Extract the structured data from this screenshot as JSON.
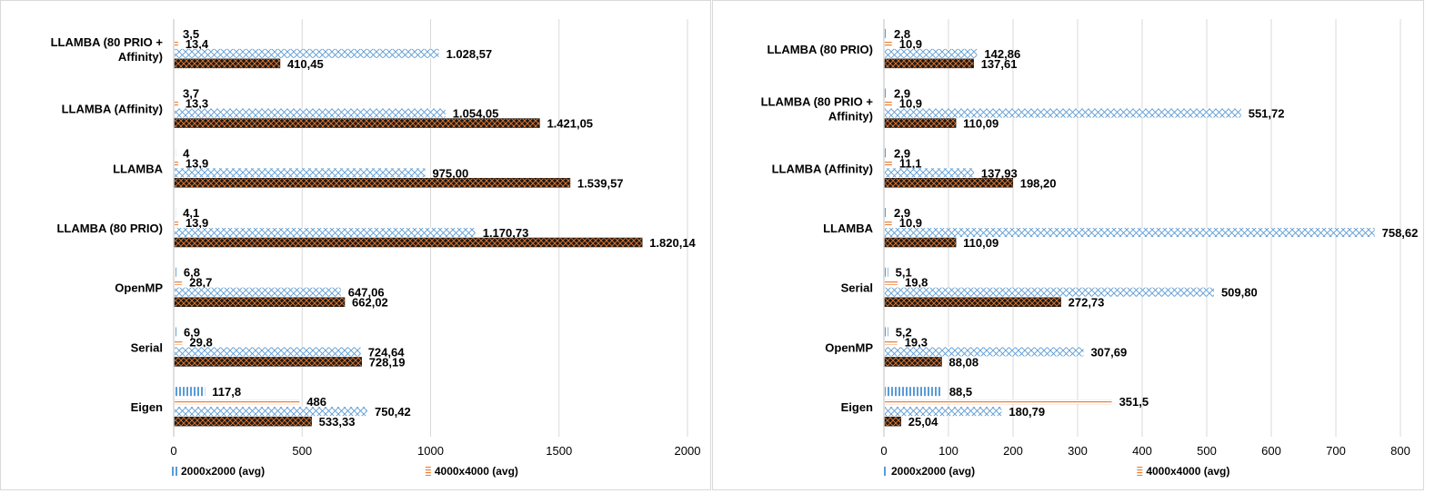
{
  "chart_data": [
    {
      "type": "bar",
      "orientation": "horizontal",
      "categories": [
        "LLAMBA (80 PRIO + Affinity)",
        "LLAMBA (Affinity)",
        "LLAMBA",
        "LLAMBA (80 PRIO)",
        "OpenMP",
        "Serial",
        "Eigen"
      ],
      "series": [
        {
          "name": "2000x2000 (avg)",
          "values": [
            3.5,
            3.7,
            4,
            4.1,
            6.8,
            6.9,
            117.8
          ],
          "labels": [
            "3,5",
            "3,7",
            "4",
            "4,1",
            "6,8",
            "6,9",
            "117,8"
          ]
        },
        {
          "name": "4000x4000 (avg)",
          "values": [
            13.4,
            13.3,
            13.9,
            13.9,
            28.7,
            29.8,
            486
          ],
          "labels": [
            "13,4",
            "13,3",
            "13,9",
            "13,9",
            "28,7",
            "29,8",
            "486"
          ]
        },
        {
          "values": [
            1028.57,
            1054.05,
            975.0,
            1170.73,
            647.06,
            724.64,
            750.42
          ],
          "labels": [
            "1.028,57",
            "1.054,05",
            "975,00",
            "1.170,73",
            "647,06",
            "724,64",
            "750,42"
          ]
        },
        {
          "values": [
            410.45,
            1421.05,
            1539.57,
            1820.14,
            662.02,
            728.19,
            533.33
          ],
          "labels": [
            "410,45",
            "1.421,05",
            "1.539,57",
            "1.820,14",
            "662,02",
            "728,19",
            "533,33"
          ]
        }
      ],
      "xlim": [
        0,
        2000
      ],
      "xticks": [
        "0",
        "500",
        "1000",
        "1500",
        "2000"
      ],
      "grid": true,
      "legend_position": "bottom",
      "colors": {
        "s0": "#5b9bd5",
        "s1": "#ed7d31",
        "s2_pattern": "#5b9bd5",
        "s3_fill": "#1f1a17",
        "s3_pattern": "#ed7d31"
      }
    },
    {
      "type": "bar",
      "orientation": "horizontal",
      "categories": [
        "LLAMBA (80 PRIO)",
        "LLAMBA (80 PRIO + Affinity)",
        "LLAMBA (Affinity)",
        "LLAMBA",
        "Serial",
        "OpenMP",
        "Eigen"
      ],
      "series": [
        {
          "name": "2000x2000 (avg)",
          "values": [
            2.8,
            2.9,
            2.9,
            2.9,
            5.1,
            5.2,
            88.5
          ],
          "labels": [
            "2,8",
            "2,9",
            "2,9",
            "2,9",
            "5,1",
            "5,2",
            "88,5"
          ]
        },
        {
          "name": "4000x4000 (avg)",
          "values": [
            10.9,
            10.9,
            11.1,
            10.9,
            19.8,
            19.3,
            351.5
          ],
          "labels": [
            "10,9",
            "10,9",
            "11,1",
            "10,9",
            "19,8",
            "19,3",
            "351,5"
          ]
        },
        {
          "values": [
            142.86,
            551.72,
            137.93,
            758.62,
            509.8,
            307.69,
            180.79
          ],
          "labels": [
            "142,86",
            "551,72",
            "137,93",
            "758,62",
            "509,80",
            "307,69",
            "180,79"
          ]
        },
        {
          "values": [
            137.61,
            110.09,
            198.2,
            110.09,
            272.73,
            88.08,
            25.04
          ],
          "labels": [
            "137,61",
            "110,09",
            "198,20",
            "110,09",
            "272,73",
            "88,08",
            "25,04"
          ]
        }
      ],
      "xlim": [
        0,
        800
      ],
      "xticks": [
        "0",
        "100",
        "200",
        "300",
        "400",
        "500",
        "600",
        "700",
        "800"
      ],
      "grid": true,
      "legend_position": "bottom",
      "colors": {
        "s0": "#5b9bd5",
        "s1": "#ed7d31",
        "s2_pattern": "#5b9bd5",
        "s3_fill": "#1f1a17",
        "s3_pattern": "#ed7d31"
      }
    }
  ]
}
